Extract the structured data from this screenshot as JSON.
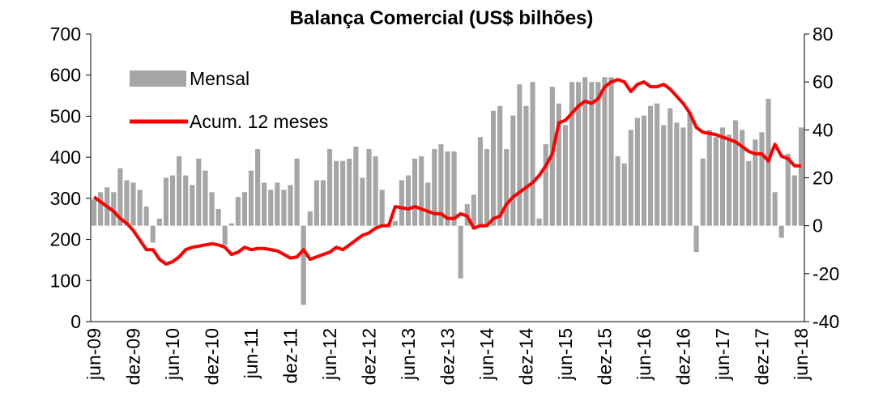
{
  "chart_data": {
    "type": "bar_line",
    "title": "Balança Comercial (US$ bilhões)",
    "categories": [
      "jun-09",
      null,
      null,
      null,
      null,
      null,
      "dez-09",
      null,
      null,
      null,
      null,
      null,
      "jun-10",
      null,
      null,
      null,
      null,
      null,
      "dez-10",
      null,
      null,
      null,
      null,
      null,
      "jun-11",
      null,
      null,
      null,
      null,
      null,
      "dez-11",
      null,
      null,
      null,
      null,
      null,
      "jun-12",
      null,
      null,
      null,
      null,
      null,
      "dez-12",
      null,
      null,
      null,
      null,
      null,
      "jun-13",
      null,
      null,
      null,
      null,
      null,
      "dez-13",
      null,
      null,
      null,
      null,
      null,
      "jun-14",
      null,
      null,
      null,
      null,
      null,
      "dez-14",
      null,
      null,
      null,
      null,
      null,
      "jun-15",
      null,
      null,
      null,
      null,
      null,
      "dez-15",
      null,
      null,
      null,
      null,
      null,
      "jun-16",
      null,
      null,
      null,
      null,
      null,
      "dez-16",
      null,
      null,
      null,
      null,
      null,
      "jun-17",
      null,
      null,
      null,
      null,
      null,
      "dez-17",
      null,
      null,
      null,
      null,
      null,
      "jun-18"
    ],
    "series": [
      {
        "name": "Mensal",
        "type": "bar",
        "axis": "y2",
        "color": "#a6a6a6",
        "values": [
          11,
          14,
          16,
          14,
          24,
          19,
          18,
          15,
          8,
          -7,
          3,
          20,
          21,
          29,
          21,
          17,
          28,
          23,
          14,
          7,
          -8,
          1,
          12,
          14,
          23,
          32,
          18,
          15,
          18,
          15,
          17,
          28,
          -33,
          6,
          19,
          19,
          32,
          27,
          27,
          28,
          33,
          20,
          32,
          29,
          15,
          1,
          2,
          19,
          21,
          28,
          29,
          18,
          32,
          34,
          31,
          31,
          -22,
          9,
          13,
          37,
          32,
          48,
          50,
          32,
          46,
          59,
          50,
          60,
          3,
          34,
          58,
          51,
          42,
          60,
          60,
          62,
          60,
          60,
          62,
          62,
          29,
          26,
          40,
          45,
          46,
          50,
          51,
          42,
          49,
          43,
          41,
          47,
          -11,
          28,
          40,
          37,
          41,
          38,
          44,
          40,
          27,
          36,
          39,
          53,
          14,
          -5,
          30,
          21,
          41
        ]
      },
      {
        "name": "Acum. 12 meses",
        "type": "line",
        "axis": "y2",
        "color": "#ff0000",
        "values": [
          12,
          10,
          8,
          6,
          3,
          1,
          -2,
          -6,
          -10,
          -10,
          -14,
          -16,
          -15,
          -13,
          -10,
          -9,
          -8.5,
          -8,
          -7.5,
          -8,
          -9,
          -12,
          -11,
          -9,
          -10,
          -9.5,
          -9.5,
          -10,
          -10.5,
          -12,
          -13.5,
          -13,
          -10,
          -14,
          -13,
          -12,
          -11,
          -9,
          -10,
          -8,
          -6,
          -4,
          -3,
          -1,
          0,
          0,
          8,
          7.5,
          7,
          8,
          7,
          6,
          5,
          5,
          3,
          3,
          5,
          4,
          -1,
          0,
          0,
          3,
          4,
          9,
          12,
          14,
          16,
          18,
          21,
          25,
          30,
          43,
          44,
          47,
          50,
          52,
          51,
          53,
          58,
          60,
          61,
          60,
          56,
          59,
          60,
          58,
          58,
          59,
          57,
          54,
          51,
          47,
          41,
          39,
          38.5,
          38,
          37,
          36,
          35,
          33,
          31,
          30,
          30,
          27,
          34,
          29,
          28,
          25,
          25
        ]
      }
    ],
    "ylim": [
      0,
      700
    ],
    "yticks": [
      0,
      100,
      200,
      300,
      400,
      500,
      600,
      700
    ],
    "y2lim": [
      -40,
      80
    ],
    "y2ticks": [
      -40,
      -20,
      0,
      20,
      40,
      60,
      80
    ],
    "legend": "upper left"
  }
}
